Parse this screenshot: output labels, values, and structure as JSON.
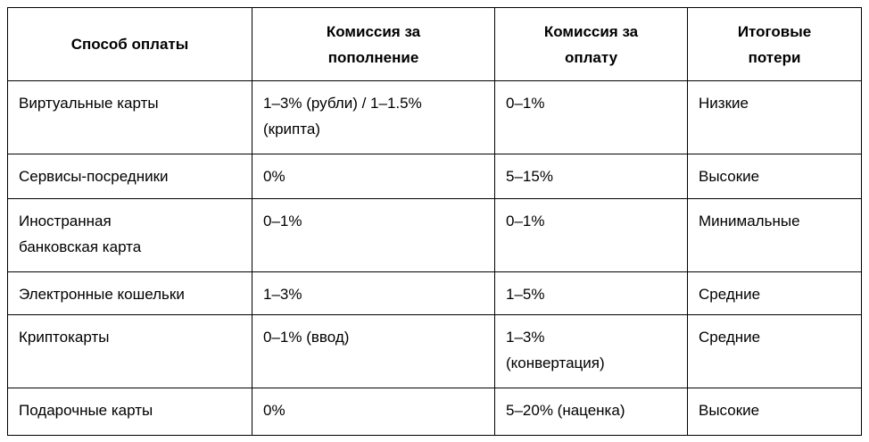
{
  "table": {
    "header": [
      [
        "Способ оплаты"
      ],
      [
        "Комиссия за",
        "пополнение"
      ],
      [
        "Комиссия за",
        "оплату"
      ],
      [
        "Итоговые",
        "потери"
      ]
    ],
    "rows": [
      [
        [
          "Виртуальные карты"
        ],
        [
          "1–3% (рубли) / 1–1.5%",
          "(крипта)"
        ],
        [
          "0–1%"
        ],
        [
          "Низкие"
        ]
      ],
      [
        [
          "Сервисы-посредники"
        ],
        [
          "0%"
        ],
        [
          "5–15%"
        ],
        [
          "Высокие"
        ]
      ],
      [
        [
          "Иностранная",
          "банковская карта"
        ],
        [
          "0–1%"
        ],
        [
          "0–1%"
        ],
        [
          "Минимальные"
        ]
      ],
      [
        [
          "Электронные кошельки"
        ],
        [
          "1–3%"
        ],
        [
          "1–5%"
        ],
        [
          "Средние"
        ]
      ],
      [
        [
          "Криптокарты"
        ],
        [
          "0–1% (ввод)"
        ],
        [
          "1–3%",
          "(конвертация)"
        ],
        [
          "Средние"
        ]
      ],
      [
        [
          "Подарочные карты"
        ],
        [
          "0%"
        ],
        [
          "5–20% (наценка)"
        ],
        [
          "Высокие"
        ]
      ]
    ]
  }
}
